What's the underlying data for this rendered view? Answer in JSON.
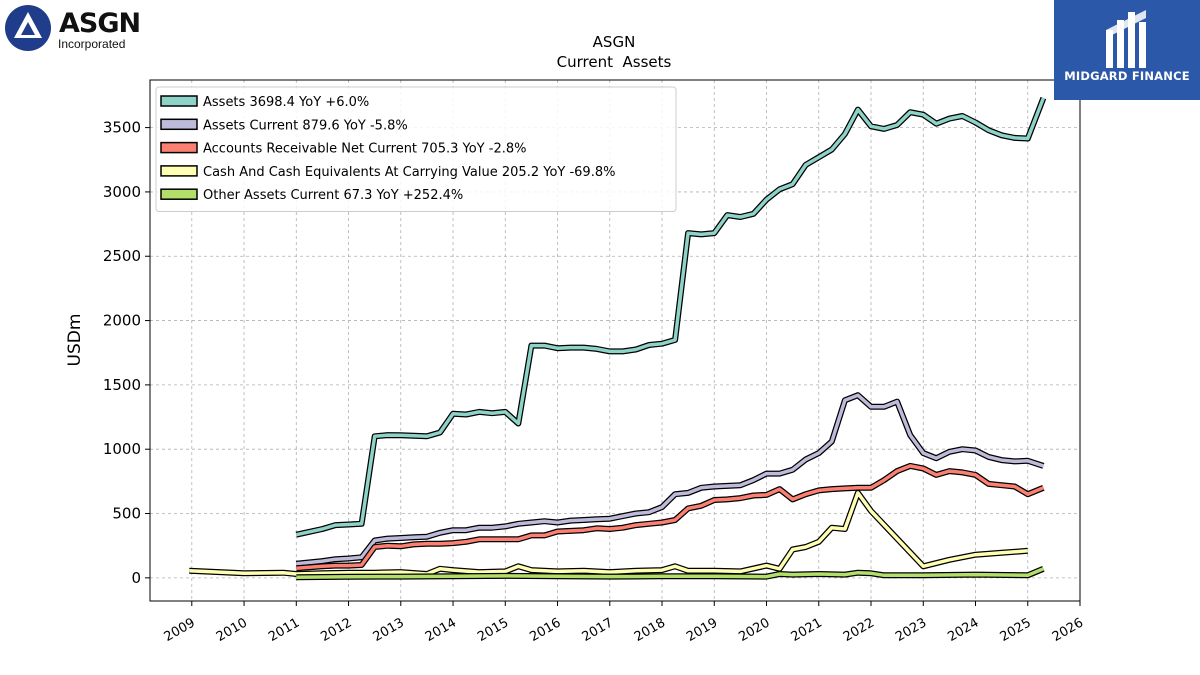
{
  "branding": {
    "left_logo_name": "ASGN",
    "left_logo_sub": "Incorporated",
    "right_logo_name": "MIDGARD FINANCE",
    "right_logo_color": "#2b58a8"
  },
  "chart_data": {
    "type": "line",
    "title": "ASGN",
    "subtitle": "Current  Assets",
    "ylabel": "USDm",
    "xlabel": "",
    "xlim": [
      2008.2,
      2026.0
    ],
    "ylim": [
      -180,
      3870
    ],
    "yticks": [
      0,
      500,
      1000,
      1500,
      2000,
      2500,
      3000,
      3500
    ],
    "xticks": [
      "2009",
      "2010",
      "2011",
      "2012",
      "2013",
      "2014",
      "2015",
      "2016",
      "2017",
      "2018",
      "2019",
      "2020",
      "2021",
      "2022",
      "2023",
      "2024",
      "2025",
      "2026"
    ],
    "grid": true,
    "legend_position": "top-left",
    "series": [
      {
        "name": "Assets",
        "legend": "Assets  3698.4 YoY +6.0%",
        "color": "#8dd3c7",
        "x": [
          2011.0,
          2011.5,
          2011.75,
          2012.0,
          2012.25,
          2012.5,
          2012.75,
          2013.0,
          2013.25,
          2013.5,
          2013.75,
          2014.0,
          2014.25,
          2014.5,
          2014.75,
          2015.0,
          2015.25,
          2015.5,
          2015.75,
          2016.0,
          2016.25,
          2016.5,
          2016.75,
          2017.0,
          2017.25,
          2017.5,
          2017.75,
          2018.0,
          2018.25,
          2018.5,
          2018.75,
          2019.0,
          2019.25,
          2019.5,
          2019.75,
          2020.0,
          2020.25,
          2020.5,
          2020.75,
          2021.0,
          2021.25,
          2021.5,
          2021.75,
          2022.0,
          2022.25,
          2022.5,
          2022.75,
          2023.0,
          2023.25,
          2023.5,
          2023.75,
          2024.0,
          2024.25,
          2024.5,
          2024.75,
          2025.0,
          2025.3
        ],
        "y": [
          335,
          380,
          410,
          415,
          420,
          1100,
          1110,
          1108,
          1105,
          1100,
          1130,
          1275,
          1270,
          1290,
          1280,
          1290,
          1200,
          1805,
          1805,
          1785,
          1790,
          1790,
          1780,
          1760,
          1760,
          1775,
          1810,
          1820,
          1850,
          2680,
          2670,
          2680,
          2820,
          2805,
          2830,
          2940,
          3020,
          3060,
          3210,
          3270,
          3330,
          3450,
          3640,
          3510,
          3490,
          3520,
          3620,
          3600,
          3530,
          3570,
          3590,
          3540,
          3480,
          3440,
          3420,
          3415,
          3730
        ]
      },
      {
        "name": "Assets Current",
        "legend": "Assets Current  879.6 YoY -5.8%",
        "color": "#bebada",
        "x": [
          2011.0,
          2011.5,
          2011.75,
          2012.0,
          2012.25,
          2012.5,
          2012.75,
          2013.0,
          2013.25,
          2013.5,
          2013.75,
          2014.0,
          2014.25,
          2014.5,
          2014.75,
          2015.0,
          2015.25,
          2015.5,
          2015.75,
          2016.0,
          2016.25,
          2016.5,
          2016.75,
          2017.0,
          2017.25,
          2017.5,
          2017.75,
          2018.0,
          2018.25,
          2018.5,
          2018.75,
          2019.0,
          2019.25,
          2019.5,
          2019.75,
          2020.0,
          2020.25,
          2020.5,
          2020.75,
          2021.0,
          2021.25,
          2021.5,
          2021.75,
          2022.0,
          2022.25,
          2022.5,
          2022.75,
          2023.0,
          2023.25,
          2023.5,
          2023.75,
          2024.0,
          2024.25,
          2024.5,
          2024.75,
          2025.0,
          2025.3
        ],
        "y": [
          110,
          130,
          145,
          150,
          160,
          290,
          305,
          310,
          315,
          320,
          350,
          370,
          370,
          390,
          390,
          400,
          420,
          430,
          440,
          430,
          445,
          450,
          455,
          460,
          480,
          500,
          510,
          550,
          650,
          660,
          700,
          710,
          715,
          720,
          760,
          810,
          810,
          840,
          920,
          970,
          1060,
          1380,
          1420,
          1330,
          1330,
          1370,
          1110,
          970,
          930,
          980,
          1000,
          990,
          940,
          915,
          905,
          910,
          870
        ]
      },
      {
        "name": "Accounts Receivable Net Current",
        "legend": "Accounts Receivable Net Current  705.3 YoY -2.8%",
        "color": "#fb8072",
        "x": [
          2011.0,
          2011.5,
          2011.75,
          2012.0,
          2012.25,
          2012.5,
          2012.75,
          2013.0,
          2013.25,
          2013.5,
          2013.75,
          2014.0,
          2014.25,
          2014.5,
          2014.75,
          2015.0,
          2015.25,
          2015.5,
          2015.75,
          2016.0,
          2016.25,
          2016.5,
          2016.75,
          2017.0,
          2017.25,
          2017.5,
          2017.75,
          2018.0,
          2018.25,
          2018.5,
          2018.75,
          2019.0,
          2019.25,
          2019.5,
          2019.75,
          2020.0,
          2020.25,
          2020.5,
          2020.75,
          2021.0,
          2021.25,
          2021.5,
          2021.75,
          2022.0,
          2022.25,
          2022.5,
          2022.75,
          2023.0,
          2023.25,
          2023.5,
          2023.75,
          2024.0,
          2024.25,
          2024.5,
          2024.75,
          2025.0,
          2025.3
        ],
        "y": [
          75,
          90,
          95,
          95,
          100,
          240,
          250,
          245,
          260,
          265,
          265,
          270,
          280,
          300,
          300,
          300,
          300,
          330,
          330,
          360,
          365,
          370,
          385,
          380,
          390,
          410,
          420,
          430,
          450,
          540,
          560,
          605,
          610,
          620,
          640,
          645,
          690,
          610,
          650,
          680,
          690,
          695,
          700,
          700,
          760,
          830,
          870,
          850,
          800,
          830,
          820,
          800,
          730,
          720,
          710,
          650,
          700
        ]
      },
      {
        "name": "Cash And Cash Equivalents At Carrying Value",
        "legend": "Cash And Cash Equivalents At Carrying Value  205.2 YoY -69.8%",
        "color": "#ffffb3",
        "x": [
          2008.95,
          2010.0,
          2010.75,
          2011.0,
          2011.5,
          2012.0,
          2012.5,
          2013.0,
          2013.5,
          2013.75,
          2014.0,
          2014.5,
          2015.0,
          2015.25,
          2015.5,
          2016.0,
          2016.5,
          2017.0,
          2017.5,
          2018.0,
          2018.25,
          2018.5,
          2019.0,
          2019.5,
          2020.0,
          2020.25,
          2020.5,
          2020.75,
          2021.0,
          2021.25,
          2021.5,
          2021.75,
          2022.0,
          2023.0,
          2023.5,
          2024.0,
          2024.5,
          2025.0
        ],
        "y": [
          55,
          35,
          40,
          30,
          35,
          40,
          40,
          45,
          30,
          70,
          60,
          45,
          50,
          90,
          60,
          50,
          55,
          45,
          55,
          60,
          90,
          55,
          55,
          50,
          95,
          70,
          220,
          240,
          280,
          390,
          380,
          660,
          520,
          90,
          140,
          180,
          195,
          210
        ]
      },
      {
        "name": "Other Assets Current",
        "legend": "Other Assets Current  67.3 YoY +252.4%",
        "color": "#b3de69",
        "x": [
          2011.0,
          2012.0,
          2013.0,
          2014.0,
          2015.0,
          2016.0,
          2017.0,
          2018.0,
          2019.0,
          2020.0,
          2020.25,
          2020.5,
          2021.0,
          2021.5,
          2021.75,
          2022.0,
          2022.25,
          2023.0,
          2024.0,
          2025.0,
          2025.3
        ],
        "y": [
          5,
          8,
          10,
          12,
          15,
          12,
          10,
          12,
          12,
          10,
          30,
          25,
          30,
          25,
          40,
          35,
          20,
          20,
          25,
          20,
          70
        ]
      }
    ]
  }
}
